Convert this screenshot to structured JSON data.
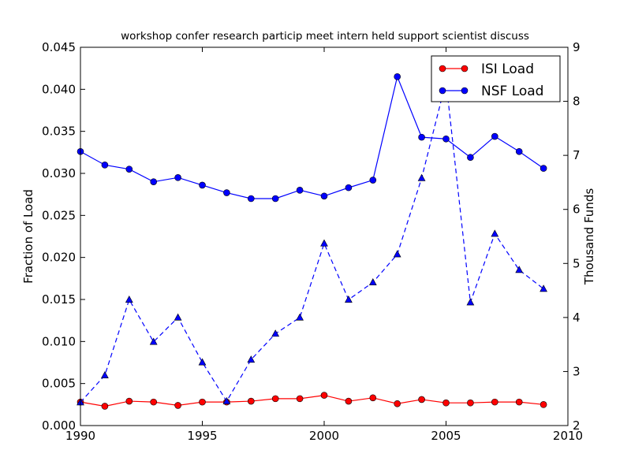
{
  "chart_data": {
    "type": "line",
    "title": "workshop confer research particip meet intern held support scientist discuss",
    "xlabel": "",
    "ylabel": "Fraction of Load",
    "y2label": "Thousand Funds",
    "xlim": [
      1990,
      2010
    ],
    "ylim": [
      0.0,
      0.045
    ],
    "y2lim": [
      2,
      9
    ],
    "x_ticks": [
      "1990",
      "1995",
      "2000",
      "2005",
      "2010"
    ],
    "y_ticks": [
      "0.000",
      "0.005",
      "0.010",
      "0.015",
      "0.020",
      "0.025",
      "0.030",
      "0.035",
      "0.040",
      "0.045"
    ],
    "y2_ticks": [
      "2",
      "3",
      "4",
      "5",
      "6",
      "7",
      "8",
      "9"
    ],
    "grid": false,
    "legend_position": "top-right",
    "x": [
      1990,
      1991,
      1992,
      1993,
      1994,
      1995,
      1996,
      1997,
      1998,
      1999,
      2000,
      2001,
      2002,
      2003,
      2004,
      2005,
      2006,
      2007,
      2008,
      2009
    ],
    "series": [
      {
        "name": "ISI Load",
        "axis": "left",
        "color": "#ff0000",
        "line_color": "#ff0000",
        "marker": "circle",
        "style": "solid",
        "values": [
          0.0028,
          0.0023,
          0.0029,
          0.0028,
          0.0024,
          0.0028,
          0.0028,
          0.0029,
          0.0032,
          0.0032,
          0.0036,
          0.0029,
          0.0033,
          0.0026,
          0.0031,
          0.0027,
          0.0027,
          0.0028,
          0.0028,
          0.0025
        ]
      },
      {
        "name": "NSF Load",
        "axis": "left",
        "color": "#0000ff",
        "line_color": "#0000ff",
        "marker": "circle",
        "style": "solid",
        "values": [
          0.0326,
          0.031,
          0.0305,
          0.029,
          0.0295,
          0.0286,
          0.0277,
          0.027,
          0.027,
          0.028,
          0.0273,
          0.0283,
          0.0292,
          0.0415,
          0.0343,
          0.0341,
          0.0319,
          0.0344,
          0.0326,
          0.0306
        ]
      },
      {
        "name": "",
        "axis": "right",
        "color": "#0000ff",
        "line_color": "#0000ff",
        "marker": "triangle",
        "style": "dashed",
        "values": [
          2.43,
          2.93,
          4.33,
          3.55,
          4.0,
          3.17,
          2.45,
          3.22,
          3.7,
          4.0,
          5.37,
          4.33,
          4.65,
          5.17,
          6.58,
          8.37,
          4.28,
          5.55,
          4.88,
          4.53
        ]
      }
    ]
  }
}
